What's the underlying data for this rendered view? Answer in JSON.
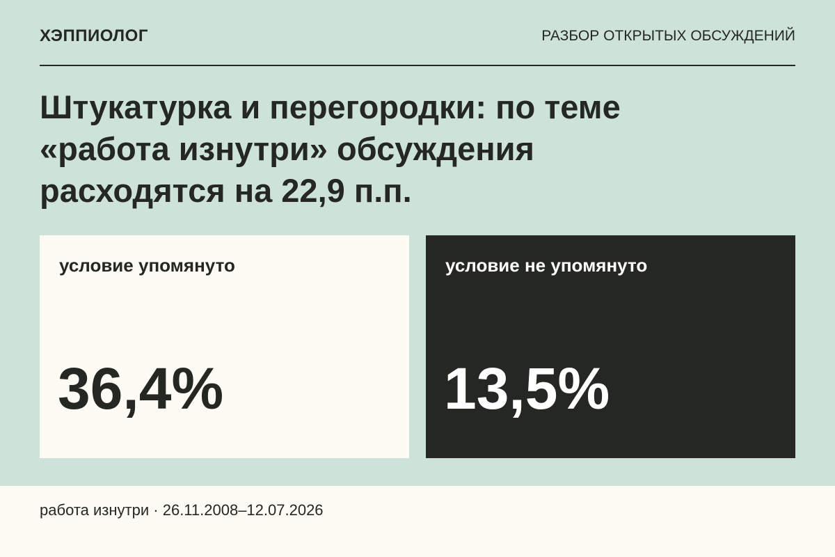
{
  "header": {
    "brand": "ХЭППИОЛОГ",
    "section": "РАЗБОР ОТКРЫТЫХ ОБСУЖДЕНИЙ"
  },
  "title_lines": [
    "Штукатурка и перегородки: по теме",
    "«работа изнутри» обсуждения",
    "расходятся на 22,9 п.п."
  ],
  "cards": [
    {
      "label": "условие упомянуто",
      "value": "36,4%"
    },
    {
      "label": "условие не упомянуто",
      "value": "13,5%"
    }
  ],
  "footer": {
    "topic": "работа изнутри",
    "separator": "·",
    "period": "26.11.2008–12.07.2026"
  }
}
